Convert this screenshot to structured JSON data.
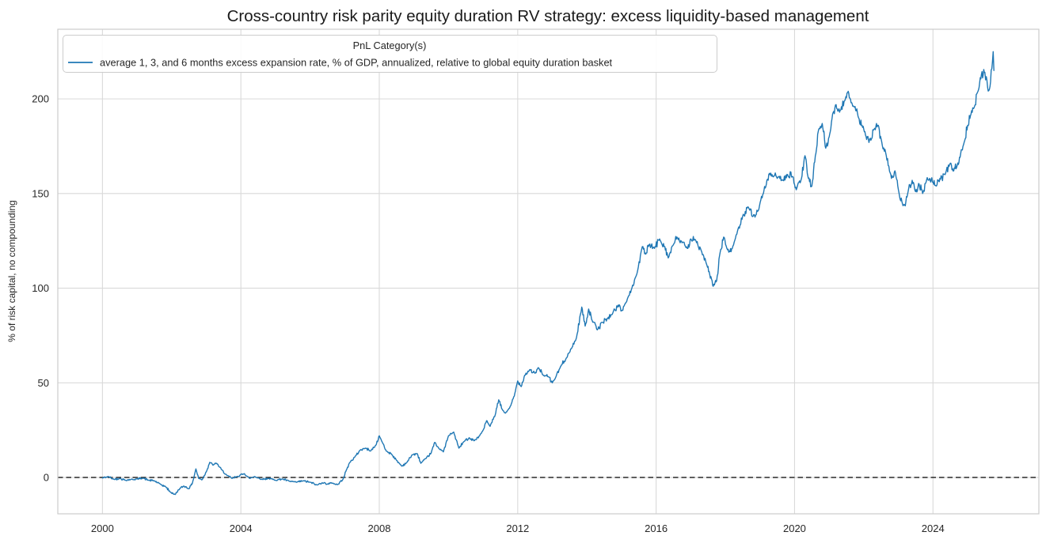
{
  "figure": {
    "background": "#ffffff"
  },
  "colors": {
    "line": "#1f77b4",
    "grid": "#d9d9d9",
    "spine": "#cccccc",
    "text": "#262626",
    "zero_line": "#000000",
    "legend_border": "#cccccc",
    "legend_bg": "#ffffff"
  },
  "chart_data": {
    "type": "line",
    "title": "Cross-country risk parity equity duration RV strategy: excess liquidity-based management",
    "xlabel": "",
    "ylabel": "% of risk capital, no compounding",
    "xlim": [
      1998.71,
      2027.06
    ],
    "ylim": [
      -19.2,
      236.8
    ],
    "xticks": [
      2000,
      2004,
      2008,
      2012,
      2016,
      2020,
      2024
    ],
    "yticks": [
      0,
      50,
      100,
      150,
      200
    ],
    "grid": true,
    "legend": {
      "title": "PnL Category(s)",
      "position": "upper left",
      "entries": [
        {
          "label": "average 1, 3, and 6 months excess expansion rate, % of GDP, annualized, relative to global equity duration basket",
          "color": "#1f77b4"
        }
      ]
    },
    "zero_line": {
      "y": 0,
      "style": "dashed",
      "color": "#000000"
    },
    "series": [
      {
        "name": "average 1, 3, and 6 months excess expansion rate, % of GDP, annualized, relative to global equity duration basket",
        "color": "#1f77b4",
        "x": [
          2000.0,
          2000.17,
          2000.33,
          2000.5,
          2000.67,
          2000.83,
          2001.0,
          2001.17,
          2001.33,
          2001.5,
          2001.67,
          2001.83,
          2001.95,
          2002.1,
          2002.2,
          2002.35,
          2002.5,
          2002.6,
          2002.7,
          2002.78,
          2002.88,
          2003.0,
          2003.1,
          2003.2,
          2003.3,
          2003.45,
          2003.6,
          2003.75,
          2003.9,
          2004.1,
          2004.25,
          2004.4,
          2004.6,
          2004.8,
          2005.0,
          2005.2,
          2005.4,
          2005.6,
          2005.8,
          2006.0,
          2006.2,
          2006.35,
          2006.5,
          2006.65,
          2006.8,
          2006.95,
          2007.05,
          2007.15,
          2007.3,
          2007.45,
          2007.6,
          2007.75,
          2007.9,
          2008.0,
          2008.1,
          2008.2,
          2008.35,
          2008.5,
          2008.65,
          2008.8,
          2008.95,
          2009.1,
          2009.2,
          2009.35,
          2009.5,
          2009.6,
          2009.7,
          2009.85,
          2010.0,
          2010.15,
          2010.3,
          2010.45,
          2010.6,
          2010.75,
          2010.9,
          2011.0,
          2011.1,
          2011.2,
          2011.35,
          2011.45,
          2011.55,
          2011.65,
          2011.8,
          2011.9,
          2012.0,
          2012.1,
          2012.2,
          2012.35,
          2012.5,
          2012.6,
          2012.75,
          2012.9,
          2013.0,
          2013.1,
          2013.25,
          2013.4,
          2013.55,
          2013.7,
          2013.85,
          2013.95,
          2014.05,
          2014.15,
          2014.3,
          2014.45,
          2014.6,
          2014.75,
          2014.9,
          2015.0,
          2015.15,
          2015.3,
          2015.45,
          2015.6,
          2015.7,
          2015.8,
          2015.95,
          2016.1,
          2016.25,
          2016.35,
          2016.5,
          2016.6,
          2016.75,
          2016.9,
          2017.0,
          2017.15,
          2017.3,
          2017.45,
          2017.55,
          2017.65,
          2017.75,
          2017.85,
          2017.95,
          2018.1,
          2018.2,
          2018.35,
          2018.5,
          2018.65,
          2018.8,
          2018.95,
          2019.1,
          2019.2,
          2019.35,
          2019.5,
          2019.65,
          2019.8,
          2019.95,
          2020.05,
          2020.2,
          2020.3,
          2020.4,
          2020.5,
          2020.6,
          2020.7,
          2020.8,
          2020.9,
          2021.0,
          2021.1,
          2021.2,
          2021.3,
          2021.45,
          2021.55,
          2021.65,
          2021.75,
          2021.85,
          2021.95,
          2022.05,
          2022.15,
          2022.3,
          2022.4,
          2022.5,
          2022.65,
          2022.8,
          2022.9,
          2023.0,
          2023.1,
          2023.2,
          2023.3,
          2023.4,
          2023.5,
          2023.6,
          2023.7,
          2023.8,
          2023.9,
          2024.0,
          2024.1,
          2024.2,
          2024.35,
          2024.5,
          2024.6,
          2024.7,
          2024.8,
          2024.9,
          2025.0,
          2025.1,
          2025.2,
          2025.3,
          2025.4,
          2025.5,
          2025.58,
          2025.63,
          2025.7,
          2025.74,
          2025.76
        ],
        "y": [
          -0.3,
          0.5,
          -1.0,
          -0.5,
          -1.5,
          -1.0,
          -0.8,
          -0.3,
          -1.5,
          -1.8,
          -3.5,
          -5.0,
          -7.5,
          -9.0,
          -6.5,
          -4.5,
          -6.0,
          -3.0,
          4.5,
          -0.5,
          -1.2,
          3.0,
          8.0,
          6.5,
          7.5,
          4.0,
          1.0,
          -0.5,
          0.5,
          2.0,
          -0.5,
          0.5,
          -1.0,
          -0.5,
          -1.5,
          -0.8,
          -2.0,
          -2.5,
          -1.8,
          -2.5,
          -4.0,
          -2.8,
          -3.5,
          -3.0,
          -3.8,
          -1.0,
          4.0,
          8.0,
          11.0,
          14.5,
          15.5,
          14.0,
          17.0,
          22.0,
          18.0,
          14.0,
          12.5,
          9.0,
          6.0,
          8.0,
          12.0,
          12.5,
          7.5,
          10.0,
          13.0,
          18.5,
          16.0,
          13.5,
          22.0,
          24.0,
          15.5,
          19.0,
          21.0,
          19.5,
          22.0,
          25.0,
          30.0,
          27.0,
          33.0,
          41.0,
          36.0,
          34.0,
          38.0,
          43.0,
          51.0,
          48.0,
          54.0,
          57.0,
          55.0,
          58.0,
          54.0,
          53.0,
          50.0,
          53.0,
          59.0,
          63.0,
          68.0,
          74.0,
          90.0,
          80.0,
          89.0,
          83.0,
          78.0,
          82.0,
          84.0,
          87.0,
          91.0,
          88.0,
          93.0,
          100.0,
          108.0,
          122.0,
          118.0,
          123.0,
          121.0,
          126.0,
          122.0,
          116.0,
          123.0,
          127.0,
          124.0,
          121.0,
          126.0,
          125.0,
          120.0,
          113.0,
          107.0,
          101.0,
          104.0,
          119.0,
          127.0,
          119.0,
          121.0,
          130.0,
          138.0,
          143.0,
          138.0,
          141.0,
          150.0,
          157.0,
          160.0,
          158.0,
          157.0,
          160.0,
          159.0,
          152.0,
          158.0,
          170.0,
          158.0,
          154.0,
          170.0,
          184.0,
          187.0,
          174.0,
          180.0,
          192.0,
          197.0,
          193.0,
          199.0,
          204.0,
          198.0,
          196.0,
          190.0,
          186.0,
          181.0,
          177.0,
          184.0,
          186.0,
          179.0,
          170.0,
          158.0,
          162.0,
          152.0,
          146.0,
          143.5,
          153.0,
          157.0,
          151.0,
          155.0,
          150.0,
          156.0,
          158.0,
          156.0,
          154.0,
          158.0,
          160.0,
          166.0,
          162.0,
          165.0,
          171.0,
          177.0,
          186.0,
          192.0,
          196.0,
          204.0,
          213.0,
          214.0,
          206.0,
          205.0,
          216.0,
          225.0,
          215.0
        ]
      }
    ]
  }
}
